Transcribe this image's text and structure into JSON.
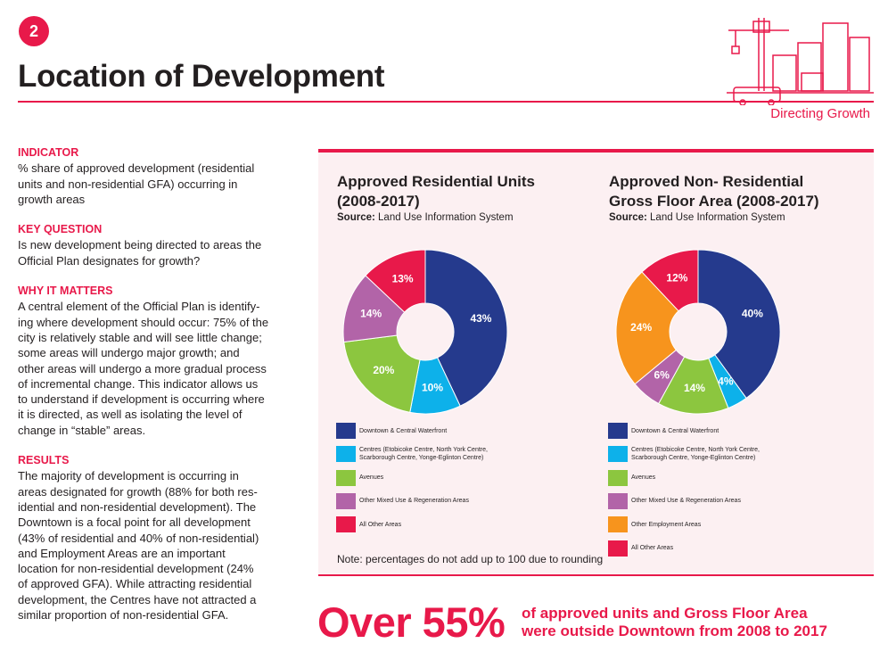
{
  "badge": "2",
  "title": "Location of Development",
  "section": "Directing Growth",
  "sidebar": [
    {
      "heading": "INDICATOR",
      "lines": [
        "% share of approved development (residential",
        "units and non-residential GFA) occurring in",
        "growth areas"
      ]
    },
    {
      "heading": "KEY QUESTION",
      "lines": [
        "Is new development being directed to areas the",
        "Official Plan designates for growth?"
      ]
    },
    {
      "heading": "WHY IT MATTERS",
      "lines": [
        "A central element of the Official Plan is identify-",
        "ing where development should occur: 75% of the",
        "city is relatively stable and will see little change;",
        "some areas will undergo major growth; and",
        "other areas will undergo a more gradual process",
        "of incremental change. This indicator allows us",
        "to understand if development is occurring where",
        "it is directed, as well as isolating the level of",
        "change in “stable” areas."
      ]
    },
    {
      "heading": "RESULTS",
      "lines": [
        "The majority of development is occurring in",
        "areas designated for growth (88% for both res-",
        "idential and non-residential development). The",
        "Downtown is a focal point for all development",
        "(43% of residential and 40% of non-residential)",
        "and Employment Areas are an important",
        "location for non-residential development (24%",
        "of approved GFA). While attracting residential",
        "development, the Centres have not attracted a",
        "similar proportion of non-residential GFA."
      ]
    }
  ],
  "chart_data": [
    {
      "type": "donut",
      "title": "Approved Residential Units (2008-2017)",
      "source_label": "Source:",
      "source": "Land Use Information System",
      "categories": [
        "Downtown & Central Waterfront",
        "Centres (Etobicoke Centre, North York Centre, Scarborough Centre, Yonge-Eglinton Centre)",
        "Avenues",
        "Other Mixed Use & Regeneration Areas",
        "All Other Areas"
      ],
      "values": [
        43,
        10,
        20,
        14,
        13
      ],
      "value_labels": [
        "43%",
        "10%",
        "20%",
        "14%",
        "13%"
      ],
      "colors": [
        "#253a8d",
        "#0db1ea",
        "#8cc63f",
        "#b264a8",
        "#e8194a"
      ]
    },
    {
      "type": "donut",
      "title": "Approved Non- Residential Gross Floor Area (2008-2017)",
      "source_label": "Source:",
      "source": "Land Use Information System",
      "categories": [
        "Downtown & Central Waterfront",
        "Centres (Etobicoke Centre, North York Centre, Scarborough Centre, Yonge-Eglinton Centre)",
        "Avenues",
        "Other Mixed Use & Regeneration Areas",
        "Other Employment Areas",
        "All Other Areas"
      ],
      "values": [
        40,
        4,
        14,
        6,
        24,
        12
      ],
      "value_labels": [
        "40%",
        "4%",
        "14%",
        "6%",
        "24%",
        "12%"
      ],
      "colors": [
        "#253a8d",
        "#0db1ea",
        "#8cc63f",
        "#b264a8",
        "#f7941d",
        "#e8194a"
      ]
    }
  ],
  "note": "Note: percentages do not add up to 100 due to rounding",
  "callout": {
    "big": "Over 55%",
    "lines": [
      "of approved units and Gross Floor Area",
      "were outside Downtown from 2008 to 2017"
    ]
  }
}
